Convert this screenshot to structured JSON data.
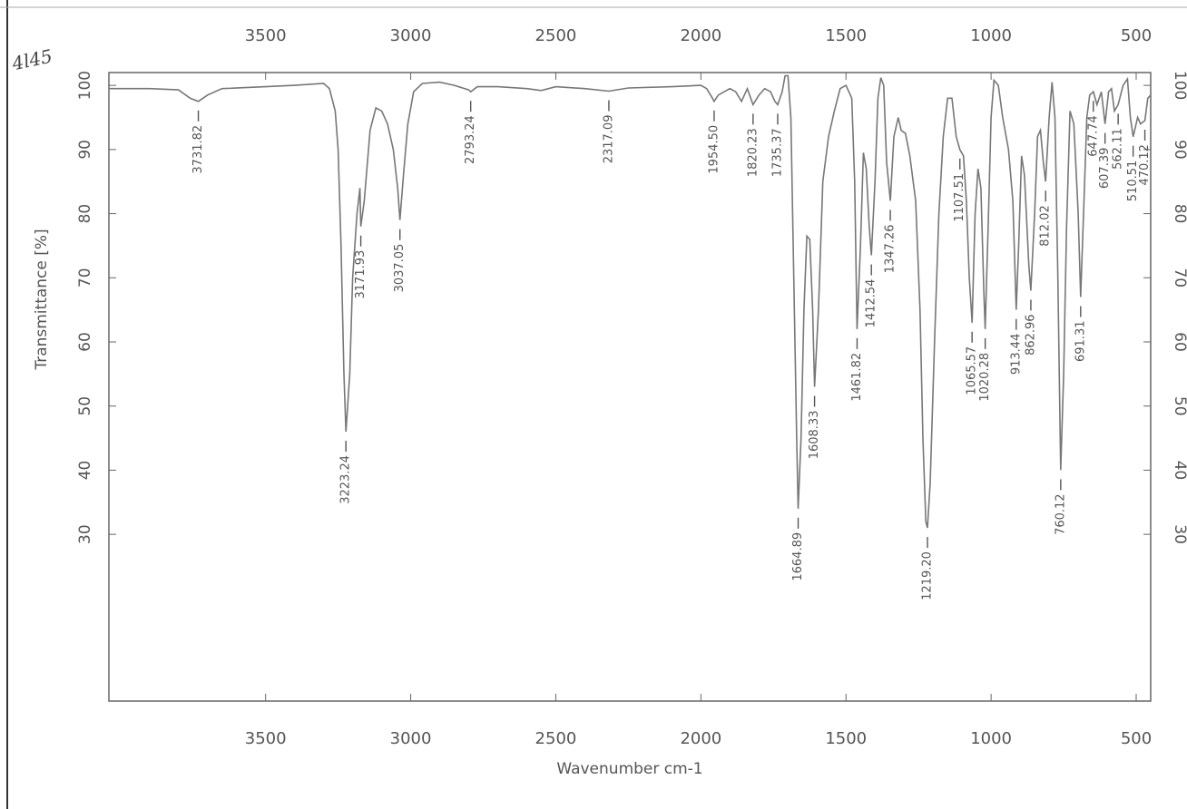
{
  "chart_data": {
    "type": "line",
    "note": "4l45",
    "x_label": "Wavenumber cm-1",
    "y_label": "Transmittance [%]",
    "color": "#777777",
    "xlim": [
      4040,
      450
    ],
    "ylim": [
      4,
      102
    ],
    "xticks": [
      3500,
      3000,
      2500,
      2000,
      1500,
      1000,
      500
    ],
    "yticks": [
      30,
      40,
      50,
      60,
      70,
      80,
      90,
      100
    ],
    "x": [
      4040,
      3900,
      3800,
      3760,
      3731.82,
      3700,
      3650,
      3500,
      3400,
      3300,
      3280,
      3260,
      3250,
      3240,
      3230,
      3223.24,
      3210,
      3200,
      3185,
      3175,
      3171.93,
      3160,
      3140,
      3120,
      3100,
      3080,
      3060,
      3045,
      3037.05,
      3025,
      3010,
      2990,
      2960,
      2900,
      2850,
      2800,
      2793.24,
      2770,
      2700,
      2600,
      2550,
      2500,
      2400,
      2317.09,
      2250,
      2100,
      2000,
      1980,
      1960,
      1954.5,
      1940,
      1900,
      1880,
      1860,
      1840,
      1820.23,
      1800,
      1780,
      1760,
      1745,
      1735.37,
      1720,
      1710,
      1700,
      1690,
      1680,
      1670,
      1664.89,
      1655,
      1645,
      1635,
      1625,
      1615,
      1608.33,
      1595,
      1580,
      1560,
      1540,
      1520,
      1500,
      1480,
      1470,
      1461.82,
      1450,
      1440,
      1430,
      1420,
      1412.54,
      1400,
      1390,
      1380,
      1370,
      1360,
      1347.26,
      1335,
      1320,
      1310,
      1295,
      1280,
      1260,
      1245,
      1235,
      1225,
      1219.2,
      1210,
      1195,
      1180,
      1165,
      1150,
      1135,
      1120,
      1107.51,
      1095,
      1085,
      1075,
      1065.57,
      1055,
      1045,
      1035,
      1025,
      1020.28,
      1010,
      1000,
      990,
      975,
      960,
      940,
      925,
      913.44,
      905,
      895,
      885,
      870,
      862.96,
      850,
      840,
      830,
      820,
      812.02,
      800,
      790,
      780,
      770,
      760.12,
      750,
      740,
      728,
      715,
      700,
      691.31,
      680,
      670,
      660,
      647.74,
      635,
      620,
      607.39,
      595,
      585,
      575,
      562.11,
      545,
      530,
      520,
      510.51,
      495,
      485,
      470.12,
      460,
      450
    ],
    "values": [
      99.5,
      99.5,
      99.3,
      98,
      97.5,
      98.5,
      99.5,
      99.8,
      100,
      100.3,
      99.5,
      96,
      90,
      75,
      55,
      46,
      55,
      70,
      80,
      84,
      78,
      82,
      93,
      96.5,
      96,
      94,
      90,
      84,
      79,
      86,
      94,
      99,
      100.3,
      100.5,
      100,
      99.3,
      99,
      99.8,
      99.8,
      99.5,
      99.2,
      99.8,
      99.5,
      99.1,
      99.6,
      99.8,
      100,
      99.5,
      98,
      97.5,
      98.5,
      99.5,
      99,
      97.5,
      99.5,
      97,
      98.5,
      99.5,
      99,
      97.5,
      97,
      99,
      101.5,
      101.5,
      95,
      70,
      45,
      34,
      45,
      65,
      76.5,
      76,
      65,
      53,
      65,
      85,
      92,
      96,
      99.5,
      100,
      98,
      85,
      62,
      75,
      89.5,
      87,
      78,
      73.5,
      85,
      98,
      101.2,
      100,
      88,
      82,
      92,
      95,
      93,
      92.5,
      89,
      82,
      65,
      45,
      32,
      31,
      38,
      60,
      80,
      92,
      98,
      98,
      92,
      90,
      89,
      82,
      70,
      63,
      80,
      87,
      84,
      68,
      62,
      78,
      95,
      100.8,
      100,
      95,
      90,
      82,
      65,
      75,
      89,
      86,
      72,
      68,
      80,
      92,
      93,
      88,
      85,
      95,
      100.5,
      95,
      70,
      40,
      55,
      78,
      96,
      94,
      80,
      67,
      82,
      95,
      98.5,
      99,
      97,
      99,
      94,
      99,
      99.5,
      96,
      97,
      100,
      101,
      95,
      92,
      95,
      94,
      94.5,
      98,
      98.5
    ],
    "peak_labels": [
      3731.82,
      3223.24,
      3171.93,
      3037.05,
      2793.24,
      2317.09,
      {
        "value": 1954.5,
        "label": "1954.50"
      },
      1820.23,
      1735.37,
      1664.89,
      1608.33,
      1461.82,
      1412.54,
      1347.26,
      {
        "value": 1219.2,
        "label": "1219.20"
      },
      1107.51,
      1065.57,
      1020.28,
      913.44,
      862.96,
      812.02,
      760.12,
      691.31,
      647.74,
      607.39,
      562.11,
      510.51,
      470.12
    ]
  }
}
